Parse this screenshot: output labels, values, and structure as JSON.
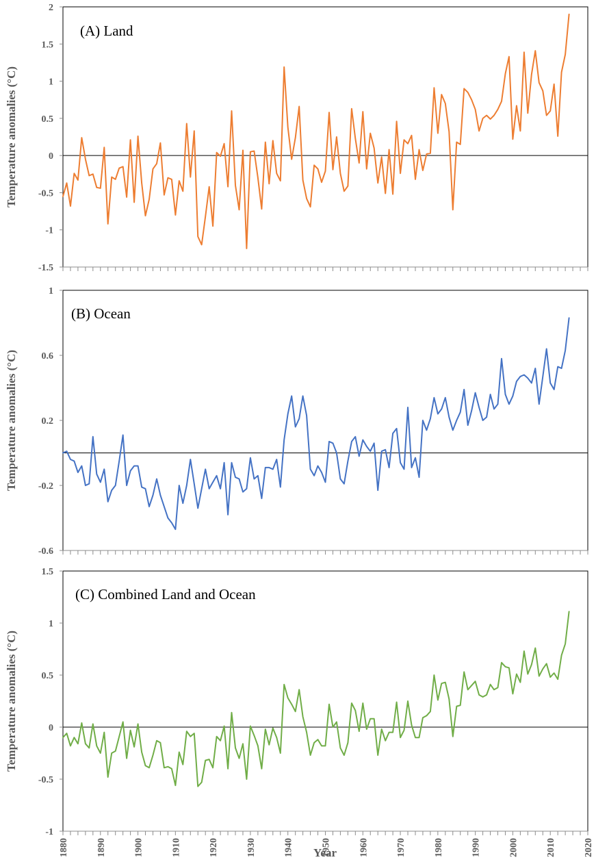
{
  "figure": {
    "xlabel": "Year",
    "x_ticks": [
      1880,
      1890,
      1900,
      1910,
      1920,
      1930,
      1940,
      1950,
      1960,
      1970,
      1980,
      1990,
      2000,
      2010,
      2020
    ]
  },
  "chart_data": [
    {
      "type": "line",
      "title": "(A)  Land",
      "ylabel": "Temperature anomalies (°C)",
      "xlim": [
        1880,
        2020
      ],
      "ylim": [
        -1.5,
        2
      ],
      "y_ticks": [
        -1.5,
        -1,
        -0.5,
        0,
        0.5,
        1,
        1.5,
        2
      ],
      "y_tick_labels": [
        "-1.5",
        "-1",
        "-0.5",
        "0",
        "0.5",
        "1",
        "1.5",
        "2"
      ],
      "grid": false,
      "colors": {
        "series": "#ed7d31"
      },
      "x": [
        1880,
        1881,
        1882,
        1883,
        1884,
        1885,
        1886,
        1887,
        1888,
        1889,
        1890,
        1891,
        1892,
        1893,
        1894,
        1895,
        1896,
        1897,
        1898,
        1899,
        1900,
        1901,
        1902,
        1903,
        1904,
        1905,
        1906,
        1907,
        1908,
        1909,
        1910,
        1911,
        1912,
        1913,
        1914,
        1915,
        1916,
        1917,
        1918,
        1919,
        1920,
        1921,
        1922,
        1923,
        1924,
        1925,
        1926,
        1927,
        1928,
        1929,
        1930,
        1931,
        1932,
        1933,
        1934,
        1935,
        1936,
        1937,
        1938,
        1939,
        1940,
        1941,
        1942,
        1943,
        1944,
        1945,
        1946,
        1947,
        1948,
        1949,
        1950,
        1951,
        1952,
        1953,
        1954,
        1955,
        1956,
        1957,
        1958,
        1959,
        1960,
        1961,
        1962,
        1963,
        1964,
        1965,
        1966,
        1967,
        1968,
        1969,
        1970,
        1971,
        1972,
        1973,
        1974,
        1975,
        1976,
        1977,
        1978,
        1979,
        1980,
        1981,
        1982,
        1983,
        1984,
        1985,
        1986,
        1987,
        1988,
        1989,
        1990,
        1991,
        1992,
        1993,
        1994,
        1995,
        1996,
        1997,
        1998,
        1999,
        2000,
        2001,
        2002,
        2003,
        2004,
        2005,
        2006,
        2007,
        2008,
        2009,
        2010,
        2011,
        2012,
        2013,
        2014,
        2015
      ],
      "values": [
        -0.55,
        -0.37,
        -0.68,
        -0.24,
        -0.33,
        0.24,
        -0.05,
        -0.27,
        -0.25,
        -0.43,
        -0.44,
        0.11,
        -0.92,
        -0.29,
        -0.32,
        -0.17,
        -0.15,
        -0.56,
        0.21,
        -0.63,
        0.26,
        -0.37,
        -0.81,
        -0.59,
        -0.18,
        -0.11,
        0.17,
        -0.53,
        -0.3,
        -0.32,
        -0.8,
        -0.34,
        -0.48,
        0.43,
        -0.29,
        0.33,
        -1.09,
        -1.2,
        -0.82,
        -0.42,
        -0.95,
        0.04,
        -0.01,
        0.16,
        -0.42,
        0.6,
        -0.4,
        -0.73,
        0.07,
        -1.25,
        0.05,
        0.06,
        -0.3,
        -0.72,
        0.18,
        -0.38,
        0.2,
        -0.24,
        -0.34,
        1.19,
        0.38,
        -0.05,
        0.24,
        0.66,
        -0.33,
        -0.58,
        -0.69,
        -0.13,
        -0.18,
        -0.36,
        -0.21,
        0.58,
        -0.19,
        0.25,
        -0.24,
        -0.48,
        -0.41,
        0.63,
        0.23,
        -0.1,
        0.59,
        -0.18,
        0.3,
        0.1,
        -0.37,
        -0.02,
        -0.51,
        0.08,
        -0.52,
        0.46,
        -0.24,
        0.21,
        0.16,
        0.27,
        -0.32,
        0.08,
        -0.2,
        0.02,
        0.03,
        0.91,
        0.3,
        0.82,
        0.7,
        0.32,
        -0.73,
        0.18,
        0.15,
        0.9,
        0.85,
        0.75,
        0.62,
        0.33,
        0.5,
        0.54,
        0.49,
        0.54,
        0.62,
        0.73,
        1.1,
        1.33,
        0.22,
        0.67,
        0.33,
        1.39,
        0.57,
        1.09,
        1.41,
        0.98,
        0.87,
        0.54,
        0.6,
        0.96,
        0.26,
        1.12,
        1.36,
        1.9
      ]
    },
    {
      "type": "line",
      "title": "(B) Ocean",
      "ylabel": "Temperature anomalies (°C)",
      "xlim": [
        1880,
        2020
      ],
      "ylim": [
        -0.6,
        1
      ],
      "y_ticks": [
        -0.6,
        -0.2,
        0.2,
        0.6,
        1
      ],
      "y_tick_labels": [
        "-0.6",
        "-0.2",
        "0.2",
        "0.6",
        "1"
      ],
      "grid": false,
      "colors": {
        "series": "#4472c4"
      },
      "x": [
        1880,
        1881,
        1882,
        1883,
        1884,
        1885,
        1886,
        1887,
        1888,
        1889,
        1890,
        1891,
        1892,
        1893,
        1894,
        1895,
        1896,
        1897,
        1898,
        1899,
        1900,
        1901,
        1902,
        1903,
        1904,
        1905,
        1906,
        1907,
        1908,
        1909,
        1910,
        1911,
        1912,
        1913,
        1914,
        1915,
        1916,
        1917,
        1918,
        1919,
        1920,
        1921,
        1922,
        1923,
        1924,
        1925,
        1926,
        1927,
        1928,
        1929,
        1930,
        1931,
        1932,
        1933,
        1934,
        1935,
        1936,
        1937,
        1938,
        1939,
        1940,
        1941,
        1942,
        1943,
        1944,
        1945,
        1946,
        1947,
        1948,
        1949,
        1950,
        1951,
        1952,
        1953,
        1954,
        1955,
        1956,
        1957,
        1958,
        1959,
        1960,
        1961,
        1962,
        1963,
        1964,
        1965,
        1966,
        1967,
        1968,
        1969,
        1970,
        1971,
        1972,
        1973,
        1974,
        1975,
        1976,
        1977,
        1978,
        1979,
        1980,
        1981,
        1982,
        1983,
        1984,
        1985,
        1986,
        1987,
        1988,
        1989,
        1990,
        1991,
        1992,
        1993,
        1994,
        1995,
        1996,
        1997,
        1998,
        1999,
        2000,
        2001,
        2002,
        2003,
        2004,
        2005,
        2006,
        2007,
        2008,
        2009,
        2010,
        2011,
        2012,
        2013,
        2014,
        2015
      ],
      "values": [
        0.0,
        0.01,
        -0.04,
        -0.05,
        -0.12,
        -0.08,
        -0.2,
        -0.19,
        0.1,
        -0.13,
        -0.18,
        -0.1,
        -0.3,
        -0.23,
        -0.2,
        -0.05,
        0.11,
        -0.2,
        -0.11,
        -0.08,
        -0.08,
        -0.21,
        -0.22,
        -0.33,
        -0.26,
        -0.16,
        -0.26,
        -0.33,
        -0.4,
        -0.43,
        -0.47,
        -0.2,
        -0.31,
        -0.2,
        -0.04,
        -0.19,
        -0.34,
        -0.22,
        -0.1,
        -0.22,
        -0.18,
        -0.14,
        -0.22,
        -0.06,
        -0.38,
        -0.06,
        -0.15,
        -0.16,
        -0.24,
        -0.22,
        -0.03,
        -0.16,
        -0.14,
        -0.28,
        -0.09,
        -0.09,
        -0.1,
        -0.04,
        -0.21,
        0.08,
        0.24,
        0.35,
        0.16,
        0.21,
        0.35,
        0.23,
        -0.1,
        -0.14,
        -0.08,
        -0.12,
        -0.18,
        0.07,
        0.06,
        0.0,
        -0.16,
        -0.19,
        -0.05,
        0.07,
        0.1,
        -0.02,
        0.08,
        0.04,
        0.01,
        0.06,
        -0.23,
        0.01,
        0.02,
        -0.09,
        0.12,
        0.15,
        -0.06,
        -0.1,
        0.28,
        -0.09,
        -0.03,
        -0.15,
        0.2,
        0.14,
        0.21,
        0.34,
        0.24,
        0.27,
        0.34,
        0.22,
        0.14,
        0.2,
        0.25,
        0.39,
        0.17,
        0.26,
        0.37,
        0.28,
        0.2,
        0.22,
        0.36,
        0.27,
        0.3,
        0.58,
        0.36,
        0.3,
        0.35,
        0.44,
        0.47,
        0.48,
        0.46,
        0.43,
        0.52,
        0.3,
        0.47,
        0.64,
        0.43,
        0.39,
        0.53,
        0.52,
        0.63,
        0.83
      ]
    },
    {
      "type": "line",
      "title": "(C) Combined Land and Ocean",
      "ylabel": "Temperature anomalies (°C)",
      "xlabel": "Year",
      "xlim": [
        1880,
        2020
      ],
      "ylim": [
        -1,
        1.5
      ],
      "y_ticks": [
        -1,
        -0.5,
        0,
        0.5,
        1,
        1.5
      ],
      "y_tick_labels": [
        "-1",
        "-0.5",
        "0",
        "0.5",
        "1",
        "1.5"
      ],
      "grid": false,
      "colors": {
        "series": "#70ad47"
      },
      "x": [
        1880,
        1881,
        1882,
        1883,
        1884,
        1885,
        1886,
        1887,
        1888,
        1889,
        1890,
        1891,
        1892,
        1893,
        1894,
        1895,
        1896,
        1897,
        1898,
        1899,
        1900,
        1901,
        1902,
        1903,
        1904,
        1905,
        1906,
        1907,
        1908,
        1909,
        1910,
        1911,
        1912,
        1913,
        1914,
        1915,
        1916,
        1917,
        1918,
        1919,
        1920,
        1921,
        1922,
        1923,
        1924,
        1925,
        1926,
        1927,
        1928,
        1929,
        1930,
        1931,
        1932,
        1933,
        1934,
        1935,
        1936,
        1937,
        1938,
        1939,
        1940,
        1941,
        1942,
        1943,
        1944,
        1945,
        1946,
        1947,
        1948,
        1949,
        1950,
        1951,
        1952,
        1953,
        1954,
        1955,
        1956,
        1957,
        1958,
        1959,
        1960,
        1961,
        1962,
        1963,
        1964,
        1965,
        1966,
        1967,
        1968,
        1969,
        1970,
        1971,
        1972,
        1973,
        1974,
        1975,
        1976,
        1977,
        1978,
        1979,
        1980,
        1981,
        1982,
        1983,
        1984,
        1985,
        1986,
        1987,
        1988,
        1989,
        1990,
        1991,
        1992,
        1993,
        1994,
        1995,
        1996,
        1997,
        1998,
        1999,
        2000,
        2001,
        2002,
        2003,
        2004,
        2005,
        2006,
        2007,
        2008,
        2009,
        2010,
        2011,
        2012,
        2013,
        2014,
        2015
      ],
      "values": [
        -0.1,
        -0.06,
        -0.18,
        -0.1,
        -0.16,
        0.04,
        -0.16,
        -0.2,
        0.03,
        -0.18,
        -0.25,
        -0.05,
        -0.48,
        -0.25,
        -0.23,
        -0.09,
        0.05,
        -0.3,
        -0.03,
        -0.19,
        0.03,
        -0.24,
        -0.37,
        -0.39,
        -0.27,
        -0.13,
        -0.15,
        -0.39,
        -0.38,
        -0.4,
        -0.56,
        -0.24,
        -0.36,
        -0.04,
        -0.09,
        -0.06,
        -0.57,
        -0.53,
        -0.32,
        -0.31,
        -0.39,
        -0.09,
        -0.13,
        0.01,
        -0.4,
        0.14,
        -0.2,
        -0.3,
        -0.16,
        -0.5,
        0.01,
        -0.08,
        -0.18,
        -0.4,
        -0.02,
        -0.17,
        -0.01,
        -0.1,
        -0.25,
        0.41,
        0.28,
        0.22,
        0.15,
        0.36,
        0.1,
        -0.05,
        -0.27,
        -0.15,
        -0.12,
        -0.18,
        -0.18,
        0.22,
        0.0,
        0.05,
        -0.2,
        -0.27,
        -0.15,
        0.23,
        0.16,
        -0.04,
        0.23,
        -0.02,
        0.08,
        0.08,
        -0.27,
        -0.02,
        -0.13,
        -0.05,
        -0.05,
        0.24,
        -0.1,
        -0.03,
        0.25,
        0.02,
        -0.1,
        -0.1,
        0.09,
        0.11,
        0.15,
        0.5,
        0.26,
        0.42,
        0.43,
        0.27,
        -0.09,
        0.2,
        0.21,
        0.53,
        0.36,
        0.4,
        0.44,
        0.31,
        0.29,
        0.31,
        0.41,
        0.36,
        0.38,
        0.62,
        0.58,
        0.57,
        0.32,
        0.51,
        0.43,
        0.73,
        0.51,
        0.6,
        0.76,
        0.49,
        0.56,
        0.61,
        0.48,
        0.52,
        0.46,
        0.69,
        0.8,
        1.11
      ]
    }
  ]
}
